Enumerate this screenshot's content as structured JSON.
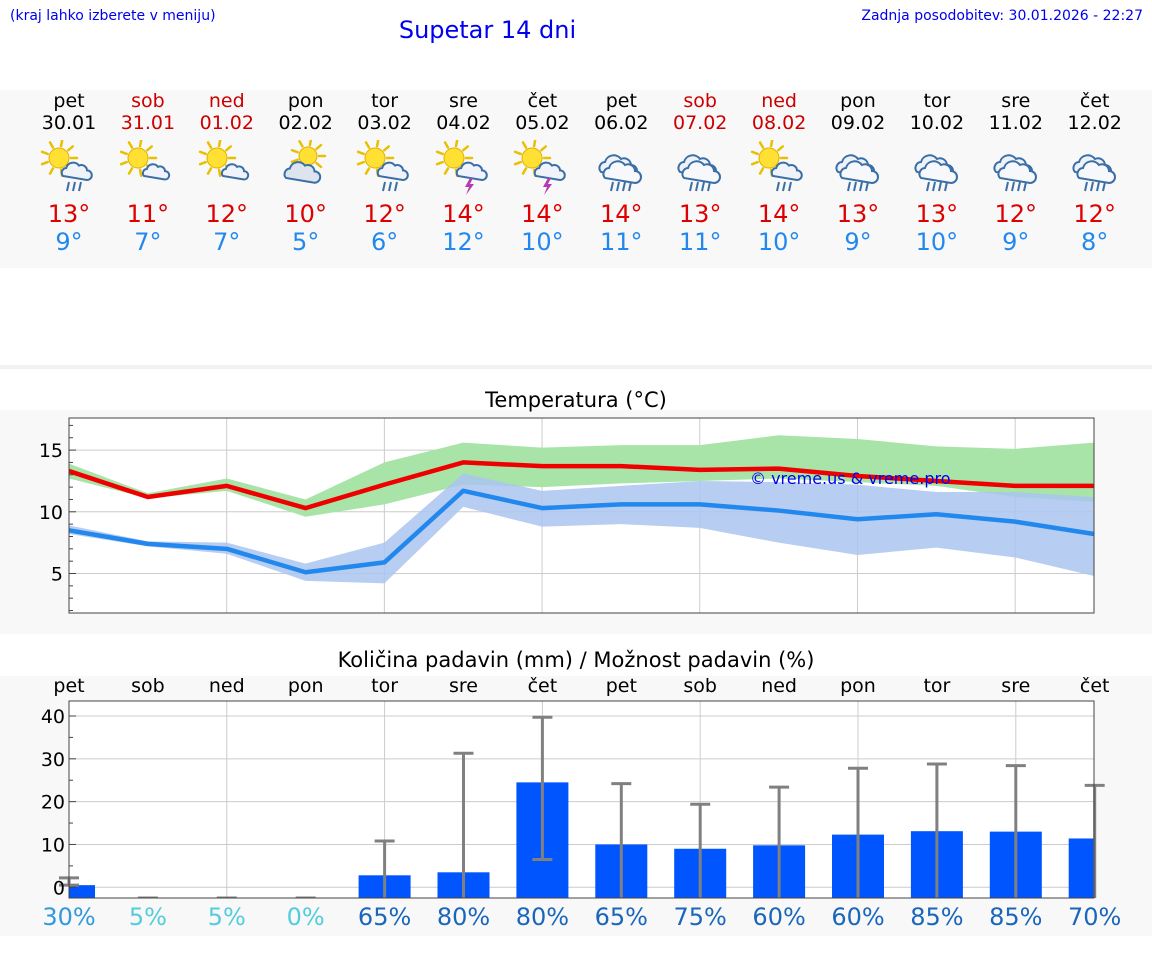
{
  "header": {
    "menu_hint": "(kraj lahko izberete v meniju)",
    "title": "Supetar 14 dni",
    "last_update": "Zadnja posodobitev: 30.01.2026 - 22:27"
  },
  "days": [
    {
      "name": "pet",
      "date": "30.01",
      "weekend": false,
      "icon": "sun-cloud-rain-icon",
      "max": "13°",
      "min": "9°"
    },
    {
      "name": "sob",
      "date": "31.01",
      "weekend": true,
      "icon": "sun-cloud-icon",
      "max": "11°",
      "min": "7°"
    },
    {
      "name": "ned",
      "date": "01.02",
      "weekend": true,
      "icon": "sun-cloud-icon",
      "max": "12°",
      "min": "7°"
    },
    {
      "name": "pon",
      "date": "02.02",
      "weekend": false,
      "icon": "cloud-sun-icon",
      "max": "10°",
      "min": "5°"
    },
    {
      "name": "tor",
      "date": "03.02",
      "weekend": false,
      "icon": "sun-cloud-rain-icon",
      "max": "12°",
      "min": "6°"
    },
    {
      "name": "sre",
      "date": "04.02",
      "weekend": false,
      "icon": "sun-cloud-storm-icon",
      "max": "14°",
      "min": "12°"
    },
    {
      "name": "čet",
      "date": "05.02",
      "weekend": false,
      "icon": "sun-cloud-storm-icon",
      "max": "14°",
      "min": "10°"
    },
    {
      "name": "pet",
      "date": "06.02",
      "weekend": false,
      "icon": "cloud-rain-icon",
      "max": "14°",
      "min": "11°"
    },
    {
      "name": "sob",
      "date": "07.02",
      "weekend": true,
      "icon": "cloud-rain-icon",
      "max": "13°",
      "min": "11°"
    },
    {
      "name": "ned",
      "date": "08.02",
      "weekend": true,
      "icon": "sun-cloud-rain-icon",
      "max": "14°",
      "min": "10°"
    },
    {
      "name": "pon",
      "date": "09.02",
      "weekend": false,
      "icon": "cloud-rain-icon",
      "max": "13°",
      "min": "9°"
    },
    {
      "name": "tor",
      "date": "10.02",
      "weekend": false,
      "icon": "cloud-rain-icon",
      "max": "13°",
      "min": "10°"
    },
    {
      "name": "sre",
      "date": "11.02",
      "weekend": false,
      "icon": "cloud-rain-icon",
      "max": "12°",
      "min": "9°"
    },
    {
      "name": "čet",
      "date": "12.02",
      "weekend": false,
      "icon": "cloud-rain-icon",
      "max": "12°",
      "min": "8°"
    }
  ],
  "colors": {
    "max_line": "#ee0000",
    "min_line": "#2288ee",
    "max_band": "#a8e4a8",
    "min_band": "#aac4f0",
    "overlap_band": "#7ec4a8",
    "bar": "#0055ff",
    "whisker": "#808080"
  },
  "chart_data": [
    {
      "type": "line",
      "title": "Temperatura (°C)",
      "watermark": "© vreme.us & vreme.pro",
      "x": [
        0,
        1,
        2,
        3,
        4,
        5,
        6,
        7,
        8,
        9,
        10,
        11,
        12,
        13
      ],
      "ylim": [
        1.8,
        17.6
      ],
      "yticks": [
        5,
        10,
        15
      ],
      "series": [
        {
          "name": "max",
          "values": [
            13.3,
            11.2,
            12.1,
            10.3,
            12.2,
            14.0,
            13.7,
            13.7,
            13.4,
            13.5,
            12.9,
            12.5,
            12.1,
            12.1
          ],
          "band_low": [
            12.7,
            11.1,
            11.7,
            9.6,
            10.6,
            12.2,
            12.0,
            12.3,
            12.5,
            12.7,
            12.4,
            12.1,
            11.2,
            10.8
          ],
          "band_high": [
            13.9,
            11.5,
            12.7,
            11.0,
            14.0,
            15.6,
            15.2,
            15.4,
            15.4,
            16.2,
            15.9,
            15.3,
            15.1,
            15.6
          ]
        },
        {
          "name": "min",
          "values": [
            8.5,
            7.4,
            7.0,
            5.1,
            5.9,
            11.7,
            10.3,
            10.6,
            10.6,
            10.1,
            9.4,
            9.8,
            9.2,
            8.2
          ],
          "band_low": [
            8.2,
            7.2,
            6.6,
            4.4,
            4.2,
            10.4,
            8.8,
            9.0,
            8.7,
            7.5,
            6.5,
            7.1,
            6.3,
            4.8
          ],
          "band_high": [
            8.9,
            7.6,
            7.5,
            5.8,
            7.5,
            13.1,
            11.7,
            12.1,
            12.5,
            12.4,
            12.2,
            11.6,
            11.6,
            11.2
          ]
        }
      ]
    },
    {
      "type": "bar",
      "title": "Količina padavin (mm) / Možnost padavin (%)",
      "categories": [
        "pet",
        "sob",
        "ned",
        "pon",
        "tor",
        "sre",
        "čet",
        "pet",
        "sob",
        "ned",
        "pon",
        "tor",
        "sre",
        "čet"
      ],
      "ylim": [
        -2.5,
        43.5
      ],
      "yticks": [
        0,
        10,
        20,
        30,
        40
      ],
      "values": [
        0.5,
        0,
        0,
        0,
        2.8,
        3.5,
        24.5,
        10.0,
        9.0,
        9.8,
        12.3,
        13.1,
        13.0,
        11.4
      ],
      "error_low": [
        0.5,
        0,
        0,
        0,
        0,
        0,
        6.5,
        0,
        0,
        0,
        0,
        0,
        0,
        0
      ],
      "error_high": [
        2.2,
        0,
        0,
        0,
        10.8,
        31.3,
        39.7,
        24.2,
        19.4,
        23.4,
        27.8,
        28.8,
        28.4,
        23.8
      ],
      "probability": [
        "30%",
        "5%",
        "5%",
        "0%",
        "65%",
        "80%",
        "80%",
        "65%",
        "75%",
        "60%",
        "60%",
        "85%",
        "85%",
        "70%"
      ],
      "probability_colors": [
        "#3399dd",
        "#55ccdd",
        "#55ccdd",
        "#55ccdd",
        "#1a66bb",
        "#1a66bb",
        "#1a66bb",
        "#1a66bb",
        "#1a66bb",
        "#1a66bb",
        "#1a66bb",
        "#1a66bb",
        "#1a66bb",
        "#1a66bb"
      ]
    }
  ]
}
